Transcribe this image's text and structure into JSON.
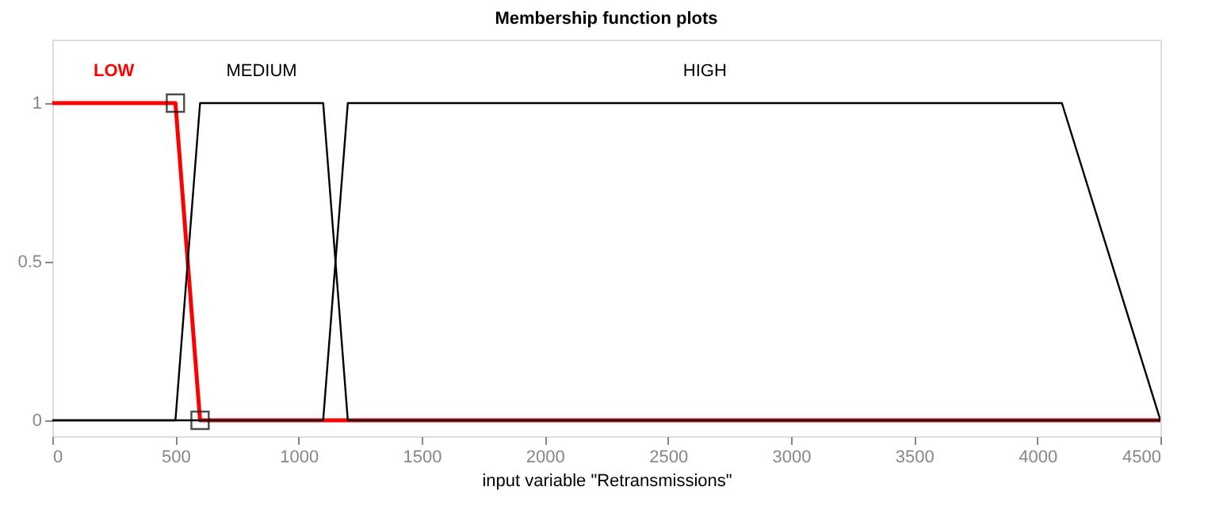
{
  "chart_data": {
    "type": "line",
    "title": "Membership function plots",
    "xlabel": "input variable \"Retransmissions\"",
    "xlim": [
      0,
      4500
    ],
    "xticks": [
      0,
      500,
      1000,
      1500,
      2000,
      2500,
      3000,
      3500,
      4000,
      4500
    ],
    "ylim": [
      -0.05,
      1.2
    ],
    "yticks": [
      0,
      0.5,
      1
    ],
    "grid": false,
    "line_style": "solid",
    "marker": "none",
    "series": [
      {
        "name": "LOW",
        "color": "#ff0000",
        "x": [
          0,
          500,
          600,
          4500
        ],
        "values": [
          1,
          1,
          0,
          0
        ]
      },
      {
        "name": "MEDIUM",
        "color": "#000000",
        "x": [
          0,
          500,
          600,
          1100,
          1200,
          4500
        ],
        "values": [
          0,
          0,
          1,
          1,
          0,
          0
        ]
      },
      {
        "name": "HIGH",
        "color": "#000000",
        "x": [
          0,
          1100,
          1200,
          4100,
          4500
        ],
        "values": [
          0,
          0,
          1,
          1,
          0
        ]
      },
      {
        "type": "scatter",
        "marker": "square",
        "color": "#000000",
        "x": [
          500,
          600
        ],
        "values": [
          1,
          0
        ]
      }
    ]
  }
}
